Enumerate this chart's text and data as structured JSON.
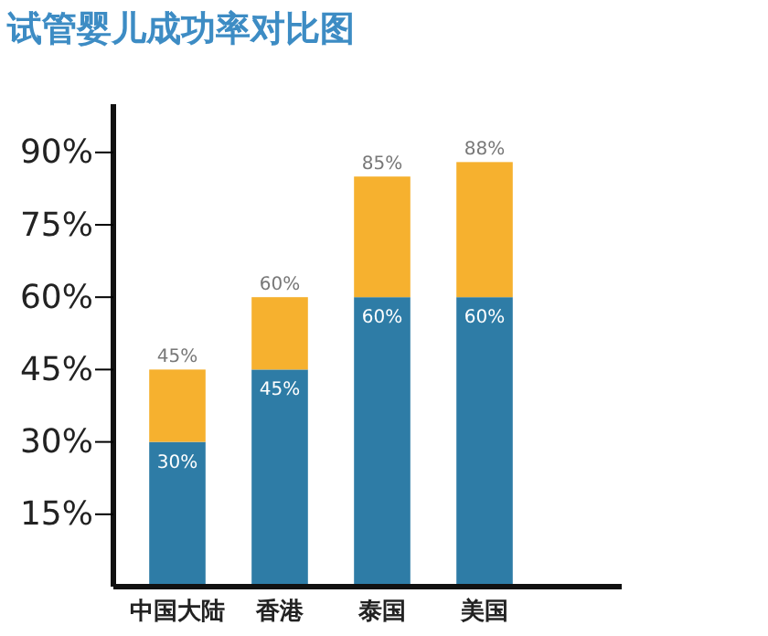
{
  "chart_data": {
    "type": "bar",
    "title": "试管婴儿成功率对比图",
    "stacked": true,
    "categories": [
      "中国大陆",
      "香港",
      "泰国",
      "美国"
    ],
    "series": [
      {
        "color": "#2e7ca6",
        "values": [
          30,
          45,
          60,
          60
        ],
        "value_labels": [
          "30%",
          "45%",
          "60%",
          "60%"
        ]
      },
      {
        "color": "#f6b12f",
        "values": [
          15,
          15,
          25,
          28
        ]
      }
    ],
    "totals": [
      "45%",
      "60%",
      "85%",
      "88%"
    ],
    "ylim": [
      0,
      100
    ],
    "yticks": [
      {
        "value": 15,
        "label": "15%"
      },
      {
        "value": 30,
        "label": "30%"
      },
      {
        "value": 45,
        "label": "45%"
      },
      {
        "value": 60,
        "label": "60%"
      },
      {
        "value": 75,
        "label": "75%"
      },
      {
        "value": 90,
        "label": "90%"
      }
    ],
    "grid": false
  }
}
